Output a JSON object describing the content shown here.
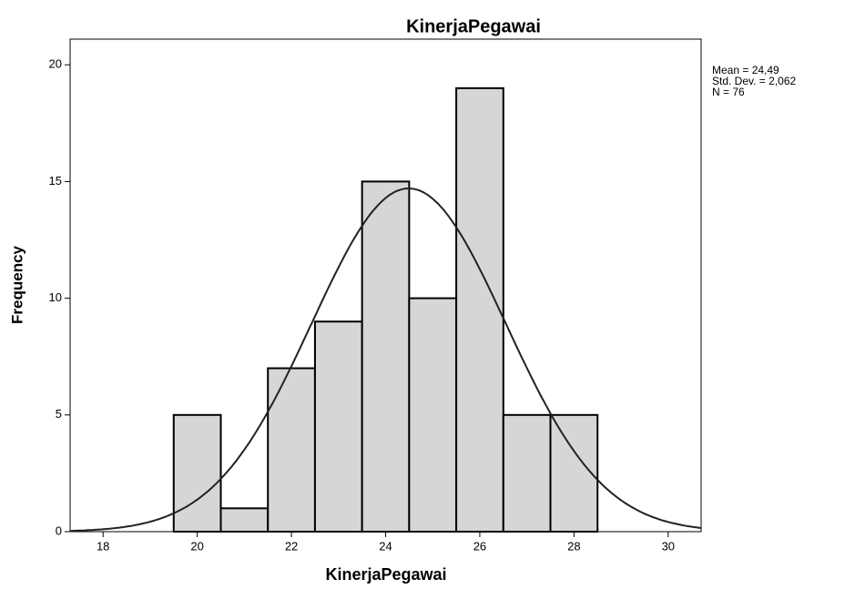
{
  "chart_data": {
    "type": "histogram",
    "title": "KinerjaPegawai",
    "x_label": "KinerjaPegawai",
    "y_label": "Frequency",
    "bins": [
      19.5,
      20.5,
      21.5,
      22.5,
      23.5,
      24.5,
      25.5,
      26.5,
      27.5,
      28.5
    ],
    "values": [
      5,
      1,
      7,
      9,
      15,
      10,
      19,
      5,
      5
    ],
    "color": "#d6d6d6",
    "xlim": [
      17.3,
      30.7
    ],
    "xticks": [
      18,
      20,
      22,
      24,
      26,
      28,
      30
    ],
    "ylim": [
      0,
      21.1
    ],
    "yticks": [
      0,
      5,
      10,
      15,
      20
    ],
    "stats": [
      {
        "value": 24.49,
        "label": "Mean = 24,49"
      },
      {
        "value": 2.062,
        "label": "Std. Dev. = 2,062"
      },
      {
        "value": 76,
        "label": "N = 76"
      }
    ]
  }
}
